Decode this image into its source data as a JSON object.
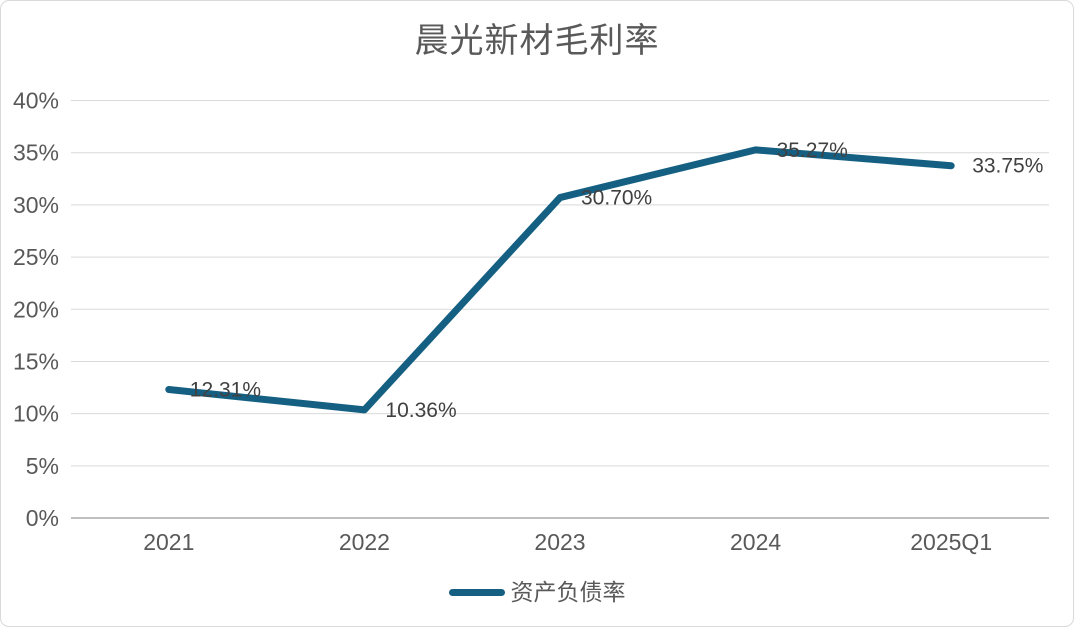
{
  "title": "晨光新材毛利率",
  "chart_data": {
    "type": "line",
    "title": "晨光新材毛利率",
    "categories": [
      "2021",
      "2022",
      "2023",
      "2024",
      "2025Q1"
    ],
    "series": [
      {
        "name": "资产负债率",
        "values": [
          12.31,
          10.36,
          30.7,
          35.27,
          33.75
        ],
        "labels": [
          "12.31%",
          "10.36%",
          "30.70%",
          "35.27%",
          "33.75%"
        ]
      }
    ],
    "ylim": [
      0,
      40
    ],
    "y_tick_step": 5,
    "y_tick_labels": [
      "0%",
      "5%",
      "10%",
      "15%",
      "20%",
      "25%",
      "30%",
      "35%",
      "40%"
    ],
    "grid": true,
    "legend_position": "bottom",
    "colors": {
      "line": "#156082",
      "grid": "#D9D9D9",
      "axis": "#BFBFBF",
      "tick_text": "#595959",
      "title_text": "#595959",
      "data_label_text": "#404040",
      "background": "#FFFFFF",
      "border": "#D9D9D9"
    }
  },
  "legend": {
    "label": "资产负债率"
  }
}
